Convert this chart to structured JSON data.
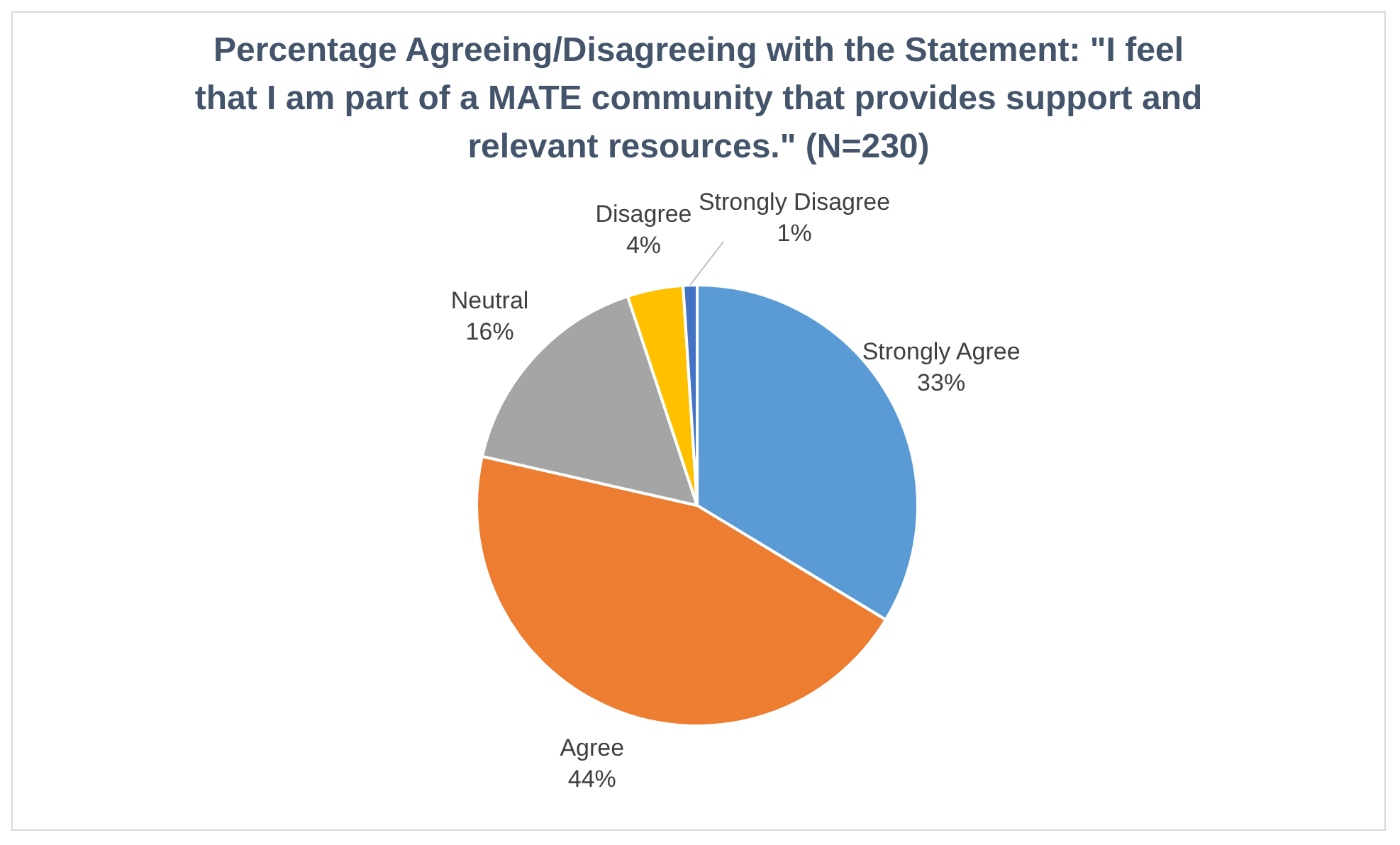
{
  "chart_data": {
    "type": "pie",
    "title": "Percentage Agreeing/Disagreeing with the Statement: \"I feel that I am part of a MATE community that provides support and relevant resources.\" (N=230)",
    "categories": [
      "Strongly Agree",
      "Agree",
      "Neutral",
      "Disagree",
      "Strongly Disagree"
    ],
    "values": [
      33,
      44,
      16,
      4,
      1
    ],
    "value_labels": [
      "33%",
      "44%",
      "16%",
      "4%",
      "1%"
    ],
    "colors": [
      "#5b9bd5",
      "#ed7d31",
      "#a5a5a5",
      "#ffc000",
      "#4472c4"
    ],
    "legend": false
  }
}
